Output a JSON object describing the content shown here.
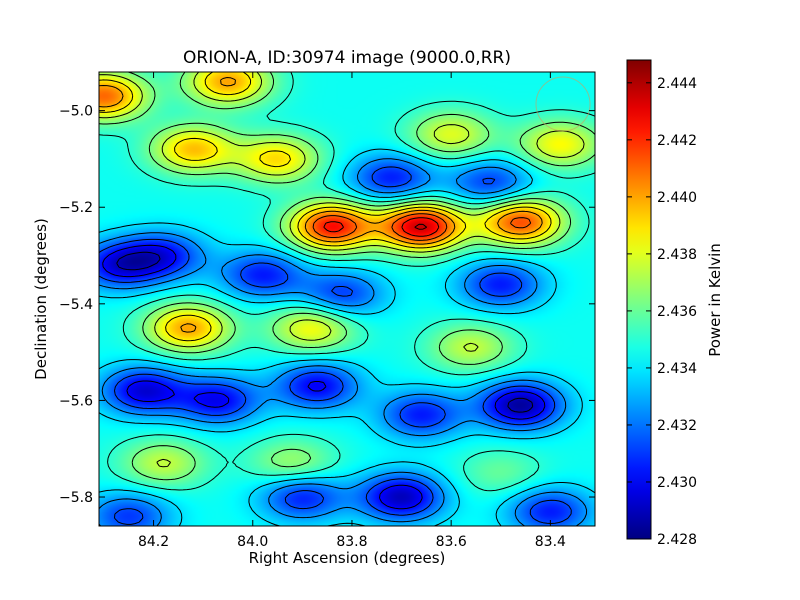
{
  "chart_data": {
    "type": "heatmap",
    "title": "ORION-A, ID:30974 image (9000.0,RR)",
    "xlabel": "Right Ascension (degrees)",
    "ylabel": "Declination (degrees)",
    "xlim": [
      84.31,
      83.31
    ],
    "ylim": [
      -5.86,
      -4.92
    ],
    "x_ticks": [
      {
        "value": 84.2,
        "label": "84.2"
      },
      {
        "value": 84.0,
        "label": "84.0"
      },
      {
        "value": 83.8,
        "label": "83.8"
      },
      {
        "value": 83.6,
        "label": "83.6"
      },
      {
        "value": 83.4,
        "label": "83.4"
      }
    ],
    "y_ticks": [
      {
        "value": -5.0,
        "label": "−5.0"
      },
      {
        "value": -5.2,
        "label": "−5.2"
      },
      {
        "value": -5.4,
        "label": "−5.4"
      },
      {
        "value": -5.6,
        "label": "−5.6"
      },
      {
        "value": -5.8,
        "label": "−5.8"
      }
    ],
    "colorbar": {
      "label": "Power in Kelvin",
      "range": [
        2.428,
        2.4448
      ],
      "colormap": "jet",
      "ticks": [
        {
          "value": 2.444,
          "label": "2.444"
        },
        {
          "value": 2.442,
          "label": "2.442"
        },
        {
          "value": 2.44,
          "label": "2.440"
        },
        {
          "value": 2.438,
          "label": "2.438"
        },
        {
          "value": 2.436,
          "label": "2.436"
        },
        {
          "value": 2.434,
          "label": "2.434"
        },
        {
          "value": 2.432,
          "label": "2.432"
        },
        {
          "value": 2.43,
          "label": "2.430"
        },
        {
          "value": 2.428,
          "label": "2.428"
        }
      ]
    },
    "grid": false,
    "contours": true,
    "features": [
      {
        "ra": 84.3,
        "dec": -4.97,
        "value": 2.441
      },
      {
        "ra": 84.05,
        "dec": -4.94,
        "value": 2.44
      },
      {
        "ra": 84.12,
        "dec": -5.08,
        "value": 2.4395
      },
      {
        "ra": 83.95,
        "dec": -5.1,
        "value": 2.439
      },
      {
        "ra": 83.6,
        "dec": -5.05,
        "value": 2.438
      },
      {
        "ra": 83.38,
        "dec": -5.07,
        "value": 2.4385
      },
      {
        "ra": 83.72,
        "dec": -5.14,
        "value": 2.4305
      },
      {
        "ra": 83.52,
        "dec": -5.15,
        "value": 2.431
      },
      {
        "ra": 83.66,
        "dec": -5.24,
        "value": 2.4435
      },
      {
        "ra": 83.84,
        "dec": -5.24,
        "value": 2.4425
      },
      {
        "ra": 83.46,
        "dec": -5.23,
        "value": 2.4415
      },
      {
        "ra": 84.27,
        "dec": -5.32,
        "value": 2.43
      },
      {
        "ra": 84.18,
        "dec": -5.3,
        "value": 2.4305
      },
      {
        "ra": 83.98,
        "dec": -5.34,
        "value": 2.4305
      },
      {
        "ra": 83.82,
        "dec": -5.38,
        "value": 2.431
      },
      {
        "ra": 83.5,
        "dec": -5.36,
        "value": 2.4305
      },
      {
        "ra": 84.13,
        "dec": -5.45,
        "value": 2.44
      },
      {
        "ra": 83.88,
        "dec": -5.45,
        "value": 2.4385
      },
      {
        "ra": 83.56,
        "dec": -5.49,
        "value": 2.4375
      },
      {
        "ra": 84.22,
        "dec": -5.58,
        "value": 2.4295
      },
      {
        "ra": 84.07,
        "dec": -5.6,
        "value": 2.43
      },
      {
        "ra": 83.87,
        "dec": -5.57,
        "value": 2.43
      },
      {
        "ra": 83.46,
        "dec": -5.61,
        "value": 2.4285
      },
      {
        "ra": 83.66,
        "dec": -5.63,
        "value": 2.4305
      },
      {
        "ra": 84.18,
        "dec": -5.73,
        "value": 2.4375
      },
      {
        "ra": 83.92,
        "dec": -5.73,
        "value": 2.437
      },
      {
        "ra": 83.5,
        "dec": -5.75,
        "value": 2.436
      },
      {
        "ra": 83.7,
        "dec": -5.8,
        "value": 2.429
      },
      {
        "ra": 83.9,
        "dec": -5.8,
        "value": 2.4305
      },
      {
        "ra": 83.4,
        "dec": -5.83,
        "value": 2.4305
      },
      {
        "ra": 84.25,
        "dec": -5.84,
        "value": 2.431
      }
    ]
  }
}
